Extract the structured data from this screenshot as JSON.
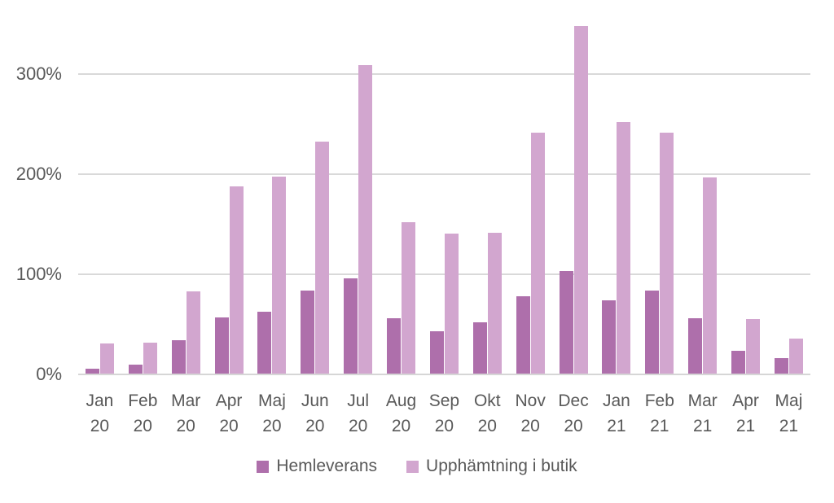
{
  "chart_data": {
    "type": "bar",
    "title": "",
    "xlabel": "",
    "ylabel": "",
    "categories": [
      "Jan 20",
      "Feb 20",
      "Mar 20",
      "Apr 20",
      "Maj 20",
      "Jun 20",
      "Jul 20",
      "Aug 20",
      "Sep 20",
      "Okt 20",
      "Nov 20",
      "Dec 20",
      "Jan 21",
      "Feb 21",
      "Mar 21",
      "Apr 21",
      "Maj 21"
    ],
    "series": [
      {
        "name": "Hemleverans",
        "color": "#ae6fab",
        "values": [
          6,
          10,
          34,
          57,
          63,
          84,
          96,
          56,
          43,
          52,
          78,
          103,
          74,
          84,
          56,
          24,
          16
        ]
      },
      {
        "name": "Upphämtning i butik",
        "color": "#d2a6cf",
        "values": [
          31,
          32,
          83,
          188,
          198,
          233,
          309,
          152,
          141,
          142,
          242,
          348,
          252,
          242,
          197,
          55,
          36
        ]
      }
    ],
    "ylim": [
      0,
      350
    ],
    "yticks": [
      {
        "value": 0,
        "label": "0%"
      },
      {
        "value": 100,
        "label": "100%"
      },
      {
        "value": 200,
        "label": "200%"
      },
      {
        "value": 300,
        "label": "300%"
      }
    ],
    "grid": true,
    "legend_position": "bottom"
  },
  "style": {
    "background": "#ffffff",
    "text_color": "#595959",
    "gridline_color": "#d9d9d9",
    "axis_line_color": "#d6d6d6"
  }
}
